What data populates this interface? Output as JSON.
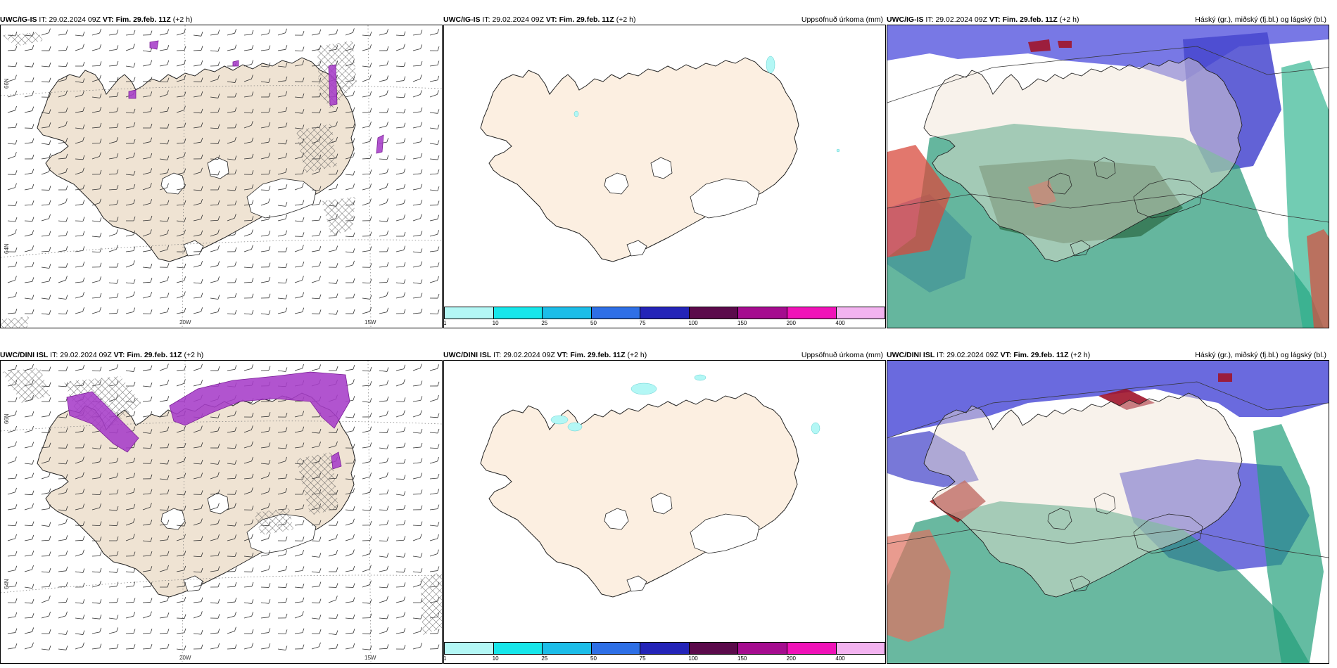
{
  "rows": [
    {
      "model": "UWC/IG-IS",
      "it_label": "IT:",
      "it_value": "29.02.2024 09Z",
      "vt_label": "VT:",
      "vt_value": "Fim. 29.feb. 11Z",
      "lead": "(+2 h)"
    },
    {
      "model": "UWC/DINI ISL",
      "it_label": "IT:",
      "it_value": "29.02.2024 09Z",
      "vt_label": "VT:",
      "vt_value": "Fim. 29.feb. 11Z",
      "lead": "(+2 h)"
    }
  ],
  "precip_title": "Uppsöfnuð úrkoma (mm)",
  "cloud_title": "Háský (gr.), miðský (fj.bl.) og lágský (bl.)",
  "lat_labels": [
    "66N",
    "64N"
  ],
  "lon_labels": [
    "20W",
    "15W"
  ],
  "colorbar": {
    "colors": [
      "#b3f7f5",
      "#16e6ea",
      "#1cbde8",
      "#2e6fe6",
      "#2424b8",
      "#5b0a4b",
      "#a50c8f",
      "#f012b8",
      "#f3b3f0"
    ],
    "ticks": [
      "1",
      "10",
      "25",
      "50",
      "75",
      "100",
      "150",
      "200",
      "400"
    ]
  },
  "colors": {
    "land": "#efe3d3",
    "land_precip_panel": "#fcefe1",
    "coast": "#222222",
    "snow_magenta": "#a63cc8",
    "hatch": "#555555",
    "cloud_high": "#5a5adf",
    "cloud_mid": "#2a9a78",
    "cloud_low_red": "#d84a3c"
  }
}
